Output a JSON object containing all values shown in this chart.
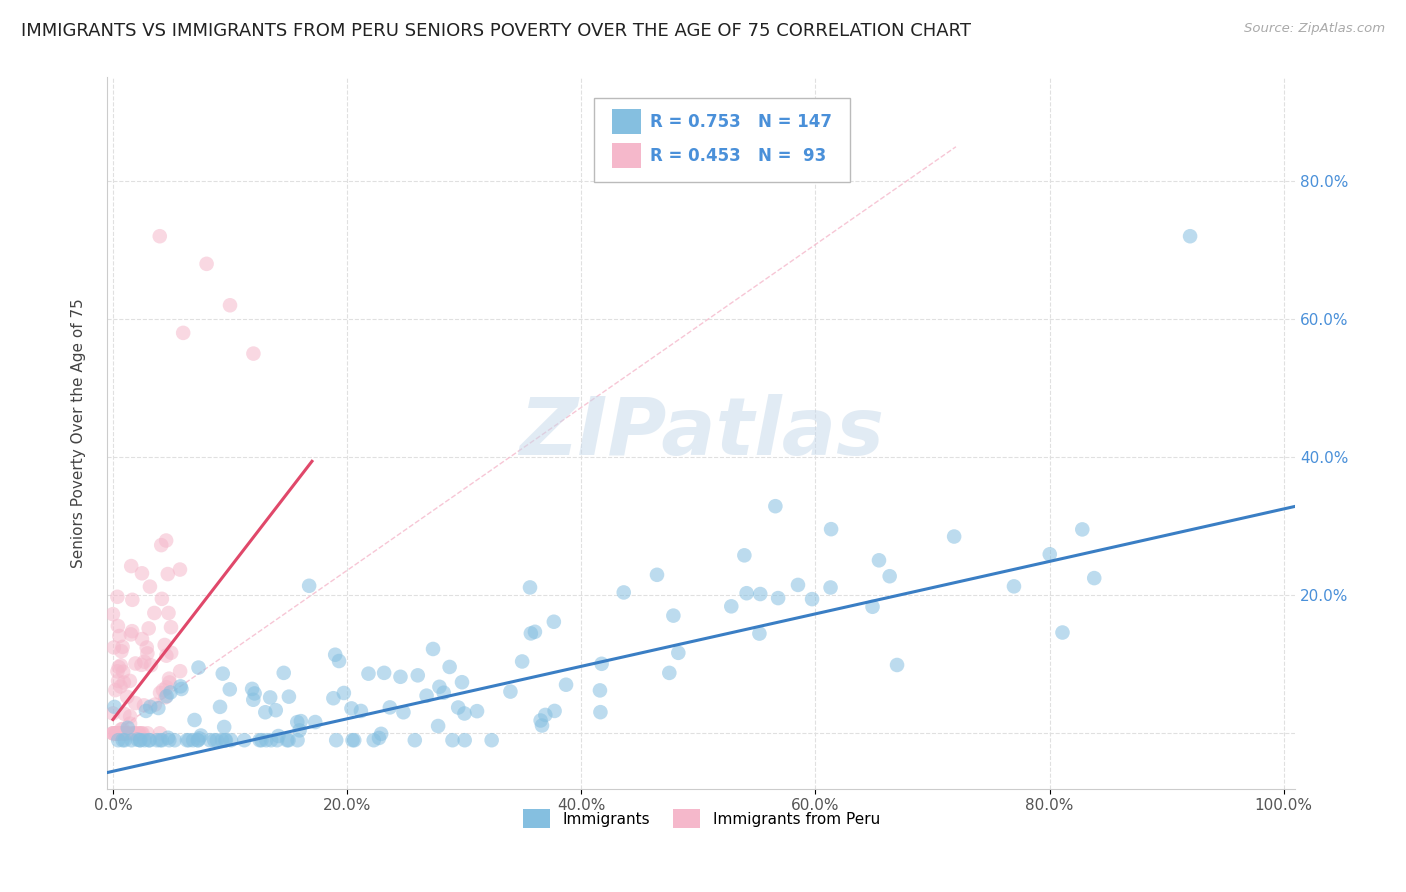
{
  "title": "IMMIGRANTS VS IMMIGRANTS FROM PERU SENIORS POVERTY OVER THE AGE OF 75 CORRELATION CHART",
  "source": "Source: ZipAtlas.com",
  "ylabel": "Seniors Poverty Over the Age of 75",
  "xlim": [
    -0.005,
    1.01
  ],
  "ylim": [
    -0.08,
    0.95
  ],
  "xticks": [
    0.0,
    0.2,
    0.4,
    0.6,
    0.8,
    1.0
  ],
  "yticks": [
    0.0,
    0.2,
    0.4,
    0.6,
    0.8
  ],
  "xticklabels": [
    "0.0%",
    "20.0%",
    "40.0%",
    "60.0%",
    "80.0%",
    "100.0%"
  ],
  "yticklabels_right": [
    "",
    "20.0%",
    "40.0%",
    "60.0%",
    "80.0%"
  ],
  "blue_color": "#85bfe0",
  "pink_color": "#f5b8cb",
  "blue_line_color": "#3a7ec4",
  "pink_line_color": "#e0486a",
  "pink_dash_color": "#f5b8cb",
  "legend_R1": "0.753",
  "legend_N1": "147",
  "legend_R2": "0.453",
  "legend_N2": "93",
  "legend_label1": "Immigrants",
  "legend_label2": "Immigrants from Peru",
  "watermark": "ZIPatlas",
  "title_fontsize": 13,
  "axis_label_fontsize": 11,
  "tick_fontsize": 11,
  "blue_R": 0.753,
  "blue_N": 147,
  "pink_R": 0.453,
  "pink_N": 93,
  "blue_intercept": -0.055,
  "blue_slope": 0.38,
  "pink_intercept": 0.02,
  "pink_slope": 2.2,
  "grid_color": "#e0e0e0",
  "background_color": "#ffffff",
  "right_tick_color": "#4a90d9",
  "left_tick_color": "#555555"
}
